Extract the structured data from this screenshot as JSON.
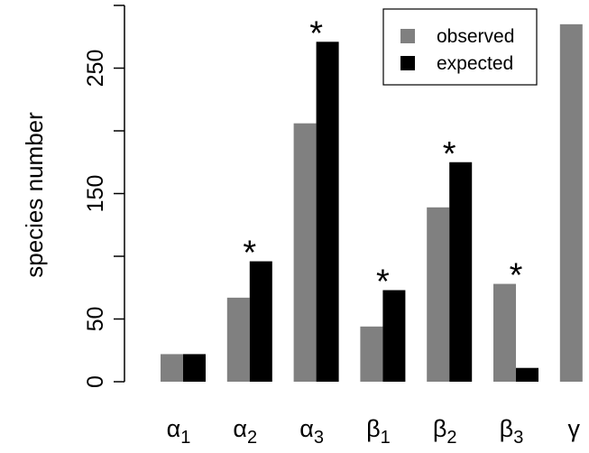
{
  "chart_data": {
    "type": "bar",
    "categories": [
      {
        "base": "α",
        "sub": "1"
      },
      {
        "base": "α",
        "sub": "2"
      },
      {
        "base": "α",
        "sub": "3"
      },
      {
        "base": "β",
        "sub": "1"
      },
      {
        "base": "β",
        "sub": "2"
      },
      {
        "base": "β",
        "sub": "3"
      },
      {
        "base": "γ",
        "sub": ""
      }
    ],
    "series": [
      {
        "name": "observed",
        "color": "#808080",
        "values": [
          22,
          67,
          206,
          44,
          139,
          78,
          285
        ]
      },
      {
        "name": "expected",
        "color": "#000000",
        "values": [
          22,
          96,
          271,
          73,
          175,
          11,
          null
        ]
      }
    ],
    "significance_marker": "*",
    "significant": [
      false,
      true,
      true,
      true,
      true,
      true,
      false
    ],
    "ylabel": "species number",
    "xlabel": "",
    "ylim": [
      0,
      300
    ],
    "yticks": [
      0,
      50,
      150,
      250
    ],
    "legend": {
      "position": "top-right",
      "entries": [
        "observed",
        "expected"
      ]
    },
    "grid": false
  }
}
